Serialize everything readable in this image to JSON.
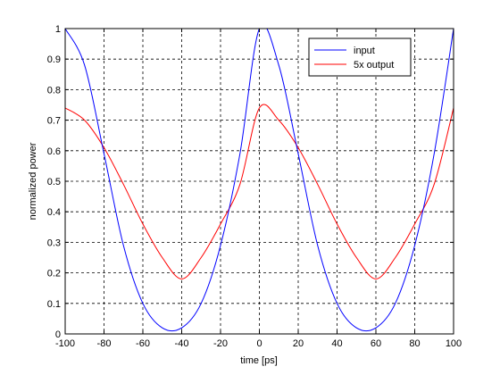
{
  "chart_data": {
    "type": "line",
    "title": "",
    "xlabel": "time [ps]",
    "ylabel": "normalized power",
    "xlim": [
      -100,
      100
    ],
    "ylim": [
      0,
      1
    ],
    "xticks": [
      -100,
      -80,
      -60,
      -40,
      -20,
      0,
      20,
      40,
      60,
      80,
      100
    ],
    "yticks": [
      0,
      0.1,
      0.2,
      0.3,
      0.4,
      0.5,
      0.6,
      0.7,
      0.8,
      0.9,
      1
    ],
    "xtick_labels": [
      "-100",
      "-80",
      "-60",
      "-40",
      "-20",
      "0",
      "20",
      "40",
      "60",
      "80",
      "100"
    ],
    "ytick_labels": [
      "0",
      "0.1",
      "0.2",
      "0.3",
      "0.4",
      "0.5",
      "0.6",
      "0.7",
      "0.8",
      "0.9",
      "1"
    ],
    "grid": true,
    "grid_style": "dashed",
    "legend_position": "top-right",
    "legend": [
      {
        "label": "input",
        "color": "#0000ff"
      },
      {
        "label": "5x output",
        "color": "#ff0000"
      }
    ],
    "series": [
      {
        "color": "#0000ff",
        "role": "input",
        "x": [
          -100,
          -90,
          -80,
          -70,
          -60,
          -50,
          -40,
          -30,
          -20,
          -10,
          0,
          10,
          20,
          30,
          40,
          50,
          60,
          70,
          80,
          90,
          100
        ],
        "y": [
          1.0,
          0.88,
          0.59,
          0.29,
          0.1,
          0.02,
          0.02,
          0.1,
          0.29,
          0.59,
          1.0,
          0.88,
          0.59,
          0.29,
          0.1,
          0.02,
          0.02,
          0.1,
          0.29,
          0.59,
          1.0
        ]
      },
      {
        "color": "#ff0000",
        "role": "output",
        "x": [
          -100,
          -90,
          -80,
          -70,
          -60,
          -50,
          -40,
          -30,
          -20,
          -10,
          0,
          10,
          20,
          30,
          40,
          50,
          60,
          70,
          80,
          90,
          100
        ],
        "y": [
          0.74,
          0.7,
          0.61,
          0.49,
          0.36,
          0.25,
          0.18,
          0.25,
          0.36,
          0.49,
          0.74,
          0.7,
          0.61,
          0.49,
          0.36,
          0.25,
          0.18,
          0.25,
          0.36,
          0.49,
          0.74
        ]
      }
    ]
  }
}
